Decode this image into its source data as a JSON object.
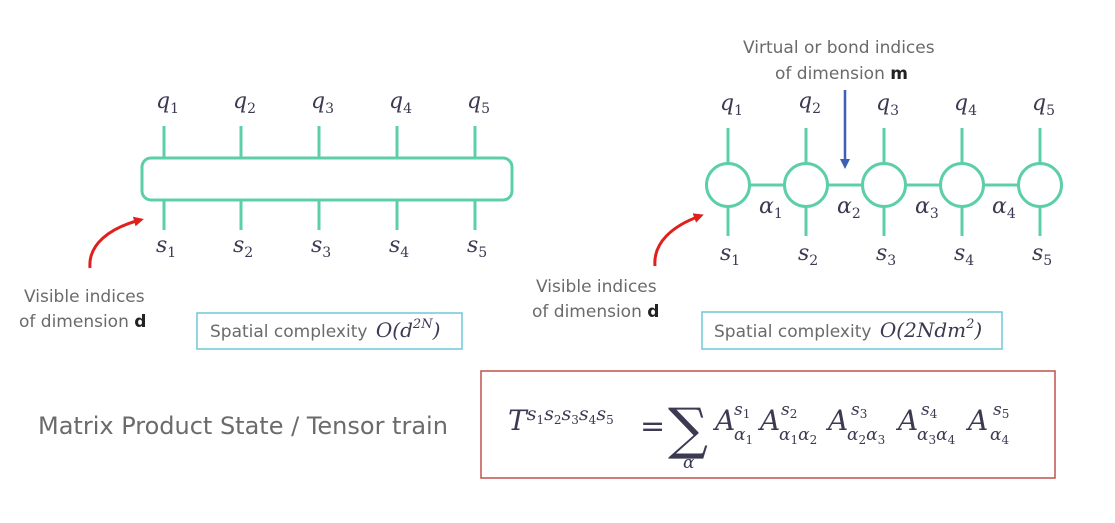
{
  "colors": {
    "tensor_line": "#5ccfaa",
    "curve_arrow": "#e0201c",
    "bond_arrow": "#3f5fb5",
    "complexity_box": "#6fc8d8",
    "formula_box": "#c0504d",
    "text": "#6a6a6a",
    "math": "#3c3a52"
  },
  "left_diagram": {
    "q_labels": [
      {
        "base": "q",
        "sub": "1"
      },
      {
        "base": "q",
        "sub": "2"
      },
      {
        "base": "q",
        "sub": "3"
      },
      {
        "base": "q",
        "sub": "4"
      },
      {
        "base": "q",
        "sub": "5"
      }
    ],
    "s_labels": [
      {
        "base": "s",
        "sub": "1"
      },
      {
        "base": "s",
        "sub": "2"
      },
      {
        "base": "s",
        "sub": "3"
      },
      {
        "base": "s",
        "sub": "4"
      },
      {
        "base": "s",
        "sub": "5"
      }
    ],
    "visible_note": {
      "line1": "Visible indices",
      "line2_prefix": "of dimension",
      "line2_var": "d"
    },
    "complexity": {
      "label": "Spatial complexity",
      "O": "O",
      "open": "(",
      "base": "d",
      "exp": "2N",
      "close": ")"
    }
  },
  "right_diagram": {
    "q_labels": [
      {
        "base": "q",
        "sub": "1"
      },
      {
        "base": "q",
        "sub": "2"
      },
      {
        "base": "q",
        "sub": "3"
      },
      {
        "base": "q",
        "sub": "4"
      },
      {
        "base": "q",
        "sub": "5"
      }
    ],
    "s_labels": [
      {
        "base": "s",
        "sub": "1"
      },
      {
        "base": "s",
        "sub": "2"
      },
      {
        "base": "s",
        "sub": "3"
      },
      {
        "base": "s",
        "sub": "4"
      },
      {
        "base": "s",
        "sub": "5"
      }
    ],
    "alpha_labels": [
      {
        "base": "α",
        "sub": "1"
      },
      {
        "base": "α",
        "sub": "2"
      },
      {
        "base": "α",
        "sub": "3"
      },
      {
        "base": "α",
        "sub": "4"
      }
    ],
    "bond_note": {
      "line1": "Virtual or bond indices",
      "line2_prefix": "of dimension",
      "line2_var": "m"
    },
    "visible_note": {
      "line1": "Visible indices",
      "line2_prefix": "of dimension",
      "line2_var": "d"
    },
    "complexity": {
      "label": "Spatial complexity",
      "O": "O",
      "open": "(2",
      "mid": "Ndm",
      "exp": "2",
      "close": ")"
    }
  },
  "title": "Matrix Product State / Tensor train",
  "formula": {
    "T": "T",
    "T_sup": [
      {
        "base": "s",
        "sub": "1"
      },
      {
        "base": "s",
        "sub": "2"
      },
      {
        "base": "s",
        "sub": "3"
      },
      {
        "base": "s",
        "sub": "4"
      },
      {
        "base": "s",
        "sub": "5"
      }
    ],
    "equals": "=",
    "sum": "∑",
    "sum_index": "α",
    "factors": [
      {
        "A": "A",
        "sup": "s",
        "sup_sub": "1",
        "lower": [
          {
            "a": "α",
            "n": "1"
          }
        ]
      },
      {
        "A": "A",
        "sup": "s",
        "sup_sub": "2",
        "lower": [
          {
            "a": "α",
            "n": "1"
          },
          {
            "a": "α",
            "n": "2"
          }
        ]
      },
      {
        "A": "A",
        "sup": "s",
        "sup_sub": "3",
        "lower": [
          {
            "a": "α",
            "n": "2"
          },
          {
            "a": "α",
            "n": "3"
          }
        ]
      },
      {
        "A": "A",
        "sup": "s",
        "sup_sub": "4",
        "lower": [
          {
            "a": "α",
            "n": "3"
          },
          {
            "a": "α",
            "n": "4"
          }
        ]
      },
      {
        "A": "A",
        "sup": "s",
        "sup_sub": "5",
        "lower": [
          {
            "a": "α",
            "n": "4"
          }
        ]
      }
    ]
  }
}
